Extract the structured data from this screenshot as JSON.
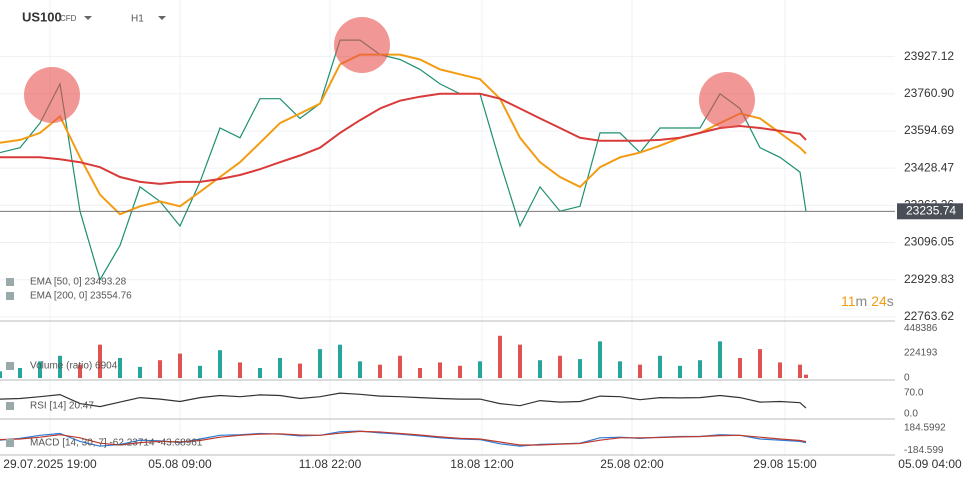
{
  "header": {
    "symbol": "US100",
    "instrument": "CFD",
    "timeframe": "H1"
  },
  "countdown": [
    "11",
    "m",
    "24",
    "s"
  ],
  "chart_data": [
    {
      "type": "line",
      "x": [
        0,
        20,
        40,
        60,
        80,
        100,
        120,
        140,
        160,
        180,
        200,
        220,
        240,
        260,
        280,
        300,
        320,
        340,
        360,
        380,
        400,
        420,
        440,
        460,
        480,
        500,
        520,
        540,
        560,
        580,
        600,
        620,
        640,
        660,
        680,
        700,
        720,
        740,
        760,
        780,
        800,
        806
      ],
      "xlim": [
        0,
        967
      ],
      "xticks": [
        {
          "value": 50,
          "label": "29.07.2025 19:00"
        },
        {
          "value": 180,
          "label": "05.08 09:00"
        },
        {
          "value": 330,
          "label": "11.08 22:00"
        },
        {
          "value": 482,
          "label": "18.08 12:00"
        },
        {
          "value": 632,
          "label": "25.08 02:00"
        },
        {
          "value": 785,
          "label": "29.08 15:00"
        },
        {
          "value": 930,
          "label": "05.09 04:00"
        }
      ],
      "ylim": [
        22750,
        24180
      ],
      "yticks": [
        22763.62,
        22929.83,
        23096.05,
        23262.26,
        23428.47,
        23594.69,
        {
          "value": 23760.9,
          "label": "23760.90"
        },
        23927.12
      ],
      "grid": true,
      "last_price": 23235.74,
      "series": [
        {
          "color": "#1e8f72",
          "values": [
            23498,
            23520,
            23630,
            23805,
            23236,
            22930,
            23083,
            23345,
            23280,
            23170,
            23367,
            23608,
            23564,
            23739,
            23739,
            23651,
            23717,
            24001,
            24001,
            23936,
            23914,
            23870,
            23805,
            23761,
            23761,
            23455,
            23170,
            23345,
            23236,
            23258,
            23586,
            23586,
            23498,
            23608,
            23608,
            23608,
            23761,
            23695,
            23520,
            23477,
            23411,
            23235.74
          ]
        },
        {
          "name": "EMA [50, 0] 23493.28",
          "color": "#f39c12",
          "values": [
            23542,
            23555,
            23586,
            23660,
            23477,
            23310,
            23223,
            23258,
            23280,
            23258,
            23323,
            23389,
            23455,
            23542,
            23630,
            23673,
            23717,
            23892,
            23936,
            23936,
            23936,
            23914,
            23870,
            23848,
            23826,
            23739,
            23564,
            23455,
            23389,
            23345,
            23433,
            23477,
            23498,
            23529,
            23564,
            23586,
            23630,
            23673,
            23651,
            23586,
            23520,
            23493.28
          ]
        },
        {
          "name": "EMA [200, 0] 23554.76",
          "color": "#d93a3a",
          "values": [
            23477,
            23477,
            23477,
            23468,
            23455,
            23433,
            23389,
            23367,
            23358,
            23367,
            23367,
            23380,
            23398,
            23424,
            23455,
            23485,
            23520,
            23586,
            23643,
            23695,
            23730,
            23748,
            23761,
            23761,
            23761,
            23739,
            23695,
            23651,
            23608,
            23564,
            23551,
            23551,
            23551,
            23555,
            23564,
            23586,
            23608,
            23617,
            23608,
            23595,
            23582,
            23554.76
          ]
        }
      ]
    },
    {
      "type": "bar",
      "title": "Volume (ratio) 6904",
      "ylim": [
        0,
        504000
      ],
      "yticks": [
        0,
        224193,
        448386
      ],
      "up_color": "#26a69a",
      "down_color": "#e0524f",
      "values": [
        60000,
        90000,
        150000,
        200000,
        120000,
        300000,
        180000,
        100000,
        160000,
        220000,
        110000,
        250000,
        140000,
        90000,
        180000,
        130000,
        260000,
        300000,
        150000,
        120000,
        200000,
        90000,
        140000,
        110000,
        150000,
        380000,
        300000,
        160000,
        200000,
        170000,
        330000,
        150000,
        120000,
        200000,
        110000,
        160000,
        330000,
        180000,
        260000,
        140000,
        120000,
        30000
      ]
    },
    {
      "type": "line",
      "title": "RSI [14] 20.47",
      "ylim": [
        -13,
        107
      ],
      "yticks": [
        {
          "value": 70,
          "label": "70.0"
        },
        {
          "value": 0,
          "label": "0.0"
        }
      ],
      "series": [
        {
          "color": "#333333",
          "values": [
            50,
            52,
            58,
            65,
            35,
            25,
            40,
            55,
            50,
            42,
            55,
            62,
            58,
            64,
            62,
            52,
            58,
            70,
            66,
            60,
            58,
            55,
            52,
            50,
            50,
            35,
            28,
            45,
            40,
            42,
            60,
            58,
            48,
            55,
            54,
            55,
            62,
            55,
            40,
            42,
            38,
            20
          ]
        }
      ]
    },
    {
      "type": "line",
      "title": "MACD [14, 30, 7] -62.23714 -43.68961",
      "ylim": [
        -265,
        297
      ],
      "yticks": [
        184.5992,
        -184.599
      ],
      "series": [
        {
          "color": "#2b7bd6",
          "values": [
            -20,
            10,
            60,
            90,
            -40,
            -120,
            -90,
            -20,
            -30,
            -60,
            0,
            60,
            70,
            90,
            80,
            50,
            60,
            120,
            130,
            100,
            80,
            50,
            20,
            0,
            -10,
            -80,
            -120,
            -90,
            -80,
            -70,
            20,
            30,
            10,
            30,
            40,
            40,
            70,
            60,
            0,
            -20,
            -40,
            -62.23714
          ]
        },
        {
          "color": "#c0392b",
          "values": [
            -10,
            0,
            30,
            70,
            20,
            -70,
            -100,
            -60,
            -40,
            -50,
            -25,
            30,
            60,
            80,
            85,
            65,
            60,
            95,
            125,
            115,
            90,
            65,
            35,
            10,
            0,
            -50,
            -100,
            -100,
            -85,
            -75,
            -20,
            20,
            20,
            25,
            35,
            40,
            55,
            60,
            30,
            0,
            -25,
            -43.68961
          ]
        }
      ]
    }
  ]
}
